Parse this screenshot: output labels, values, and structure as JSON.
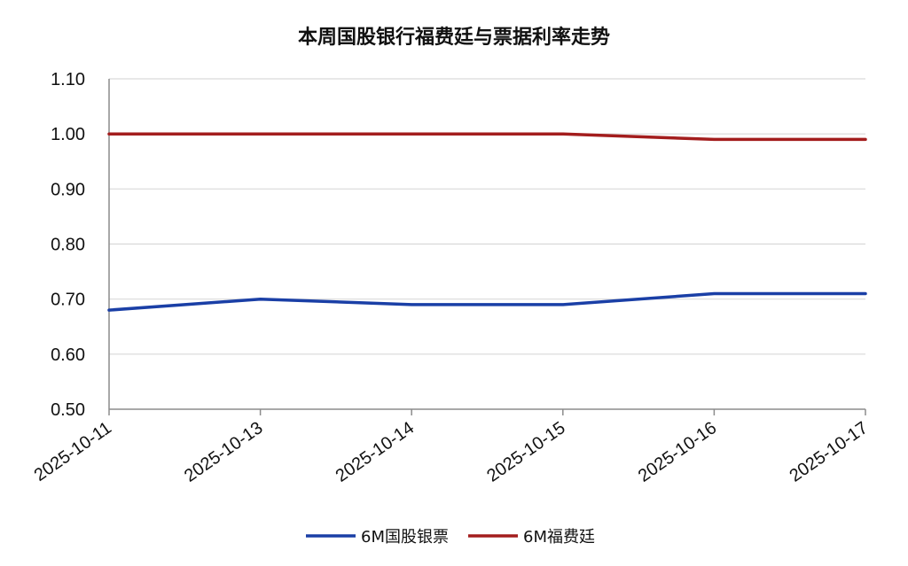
{
  "chart_data": {
    "type": "line",
    "title": "本周国股银行福费廷与票据利率走势",
    "xlabel": "",
    "ylabel": "",
    "categories": [
      "2025-10-11",
      "2025-10-13",
      "2025-10-14",
      "2025-10-15",
      "2025-10-16",
      "2025-10-17"
    ],
    "yticks": [
      "0.50",
      "0.60",
      "0.70",
      "0.80",
      "0.90",
      "1.00",
      "1.10"
    ],
    "ylim": [
      0.5,
      1.1
    ],
    "grid": true,
    "legend_position": "bottom",
    "series": [
      {
        "name": "6M国股银票",
        "color": "#1a3fa6",
        "values": [
          0.68,
          0.7,
          0.69,
          0.69,
          0.71,
          0.71
        ]
      },
      {
        "name": "6M福费廷",
        "color": "#a31d1d",
        "values": [
          1.0,
          1.0,
          1.0,
          1.0,
          0.99,
          0.99
        ]
      }
    ]
  }
}
